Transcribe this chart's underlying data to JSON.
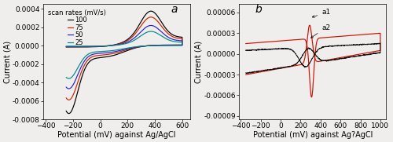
{
  "panel_a": {
    "label": "a",
    "xlabel": "Potential (mV) against Ag/AgCl",
    "ylabel": "Current (A)",
    "xlim": [
      -420,
      660
    ],
    "ylim": [
      -0.0008,
      0.00045
    ],
    "yticks": [
      -0.0008,
      -0.0006,
      -0.0004,
      -0.0002,
      0.0,
      0.0002,
      0.0004
    ],
    "xticks": [
      -400,
      -200,
      0,
      200,
      400,
      600
    ],
    "curves": [
      {
        "color": "#000000",
        "pa": 0.00029,
        "pc": -0.0006,
        "scale": 1.0
      },
      {
        "color": "#cc2200",
        "pa": 0.00024,
        "pc": -0.00048,
        "scale": 0.82
      },
      {
        "color": "#2222cc",
        "pa": 0.00017,
        "pc": -0.00038,
        "scale": 0.64
      },
      {
        "color": "#008888",
        "pa": 0.00012,
        "pc": -0.00029,
        "scale": 0.46
      }
    ]
  },
  "panel_b": {
    "label": "b",
    "xlabel": "Potential (mV) against Ag?AgCl",
    "ylabel": "Current (A)",
    "xlim": [
      -420,
      1060
    ],
    "ylim": [
      -9.5e-05,
      7.2e-05
    ],
    "yticks": [
      -9e-05,
      -6e-05,
      -3e-05,
      0.0,
      3e-05,
      6e-05
    ],
    "xticks": [
      -400,
      -200,
      0,
      200,
      400,
      600,
      800,
      1000
    ]
  },
  "figure_facecolor": "#f0eeec",
  "tick_fontsize": 6.5,
  "label_fontsize": 7,
  "panel_label_fontsize": 10
}
